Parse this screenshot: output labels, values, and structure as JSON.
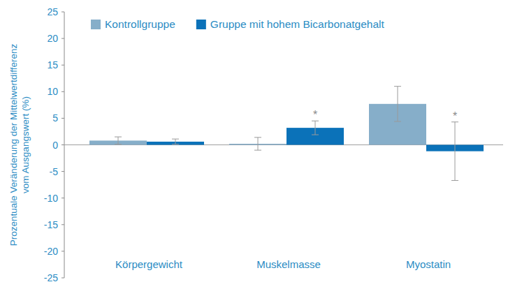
{
  "chart_data": {
    "type": "bar",
    "y_label": "Prozentuale Veränderung der Mittelwertdifferenz\nvom Ausgangswert (%)",
    "categories": [
      "Körpergewicht",
      "Muskelmasse",
      "Myostatin"
    ],
    "series": [
      {
        "name": "Kontrollgruppe",
        "color": "#86aec9",
        "values": [
          0.8,
          0.2,
          7.7
        ],
        "errors": [
          0.7,
          1.2,
          3.3
        ]
      },
      {
        "name": "Gruppe mit hohem Bicarbonatgehalt",
        "color": "#0b72b9",
        "values": [
          0.6,
          3.2,
          -1.2
        ],
        "errors": [
          0.5,
          1.3,
          5.5
        ],
        "significance": [
          null,
          "*",
          "*"
        ]
      }
    ],
    "ylim": [
      -25,
      25
    ],
    "yticks": [
      -25,
      -20,
      -15,
      -10,
      -5,
      0,
      5,
      10,
      15,
      20,
      25
    ],
    "grid": false,
    "legend": "top"
  }
}
